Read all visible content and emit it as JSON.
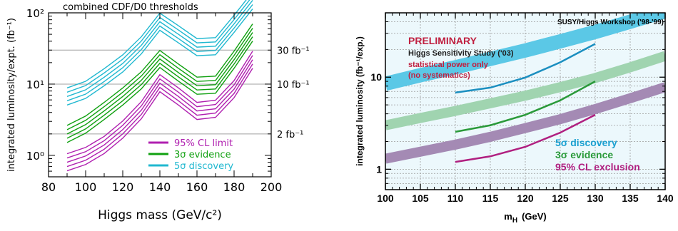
{
  "chart_data": [
    {
      "type": "line",
      "title": "combined CDF/D0 thresholds",
      "xlabel": "Higgs mass (GeV/c²)",
      "ylabel": "integrated luminosity/expt. (fb⁻¹)",
      "xlim": [
        80,
        200
      ],
      "ylim": [
        0.5,
        100
      ],
      "y_scale": "log",
      "x_ticks": [
        "80",
        "100",
        "120",
        "140",
        "160",
        "180",
        "200"
      ],
      "y_ticks": [
        "10⁰",
        "10¹",
        "10²"
      ],
      "ref_lines": [
        {
          "value": 30,
          "label": "30 fb⁻¹"
        },
        {
          "value": 10,
          "label": "10 fb⁻¹"
        },
        {
          "value": 2,
          "label": "2 fb⁻¹"
        }
      ],
      "legend_position": "bottom-right",
      "x": [
        90,
        100,
        110,
        120,
        130,
        140,
        150,
        160,
        170,
        180,
        190
      ],
      "series": [
        {
          "name": "95% CL limit",
          "color": "#b020b0",
          "values": [
            0.8,
            0.98,
            1.4,
            2.3,
            4.3,
            10.3,
            6.7,
            4.2,
            4.5,
            8.5,
            22
          ]
        },
        {
          "name": "3σ evidence",
          "color": "#10a010",
          "values": [
            2.0,
            2.7,
            4.2,
            6.7,
            11.3,
            22.5,
            14.5,
            9.5,
            9.8,
            22,
            53
          ]
        },
        {
          "name": "5σ discovery",
          "color": "#20b8d0",
          "values": [
            6.7,
            8.3,
            12.5,
            19.5,
            35,
            75,
            50,
            33,
            34,
            70,
            150
          ]
        }
      ]
    },
    {
      "type": "area",
      "annotations": {
        "header": "SUSY/Higgs Workshop ('98-'99)",
        "preliminary": "PRELIMINARY",
        "study": "Higgs Sensitivity Study ('03)",
        "power": "statistical power only",
        "systematics": "(no systematics)"
      },
      "xlabel": "m_H (GeV)",
      "xlabel_main": "m",
      "xlabel_sub": "H",
      "xlabel_unit": "(GeV)",
      "ylabel": "integrated luminosity (fb⁻¹/exp.)",
      "xlim": [
        100,
        140
      ],
      "ylim": [
        0.6,
        50
      ],
      "y_scale": "log",
      "x_ticks": [
        "100",
        "105",
        "110",
        "115",
        "120",
        "125",
        "130",
        "135",
        "140"
      ],
      "y_ticks": [
        "1",
        "10"
      ],
      "legend_position": "bottom-right",
      "bands_x": [
        100,
        105,
        110,
        115,
        120,
        125,
        130,
        135,
        140
      ],
      "bands": [
        {
          "name": "5σ discovery",
          "color": "#5bc8e6",
          "values": [
            8.5,
            10.5,
            12.8,
            15.8,
            19.5,
            24.5,
            31,
            40,
            52
          ]
        },
        {
          "name": "3σ evidence",
          "color": "#a0d4b0",
          "values": [
            3.0,
            3.6,
            4.3,
            5.2,
            6.3,
            7.8,
            9.8,
            12.8,
            17
          ]
        },
        {
          "name": "95% CL exclusion",
          "color": "#a48ab4",
          "values": [
            1.3,
            1.55,
            1.85,
            2.25,
            2.8,
            3.5,
            4.5,
            5.9,
            7.8
          ]
        }
      ],
      "lines_x": [
        110,
        115,
        120,
        125,
        130
      ],
      "lines": [
        {
          "name": "5σ discovery",
          "color": "#1b8fc0",
          "values": [
            6.8,
            7.7,
            9.9,
            14.5,
            23
          ]
        },
        {
          "name": "3σ evidence",
          "color": "#2a9a3a",
          "values": [
            2.55,
            3.0,
            3.9,
            5.6,
            9.0
          ]
        },
        {
          "name": "95% CL exclusion",
          "color": "#b02080",
          "values": [
            1.2,
            1.38,
            1.75,
            2.5,
            3.9
          ]
        }
      ]
    }
  ]
}
